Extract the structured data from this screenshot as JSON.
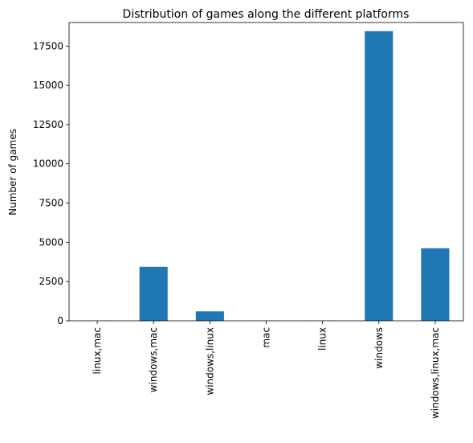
{
  "chart_data": {
    "type": "bar",
    "title": "Distribution of games along the different platforms",
    "xlabel": "",
    "ylabel": "Number of games",
    "categories": [
      "linux,mac",
      "windows,mac",
      "windows,linux",
      "mac",
      "linux",
      "windows",
      "windows,linux,mac"
    ],
    "values": [
      4,
      3440,
      600,
      2,
      3,
      18450,
      4620
    ],
    "ylim": [
      0,
      19000
    ],
    "yticks": [
      0,
      2500,
      5000,
      7500,
      10000,
      12500,
      15000,
      17500
    ],
    "ytick_labels": [
      "0",
      "2500",
      "5000",
      "7500",
      "10000",
      "12500",
      "15000",
      "17500"
    ],
    "bar_color": "#1f77b4",
    "grid": false,
    "legend": "none"
  }
}
